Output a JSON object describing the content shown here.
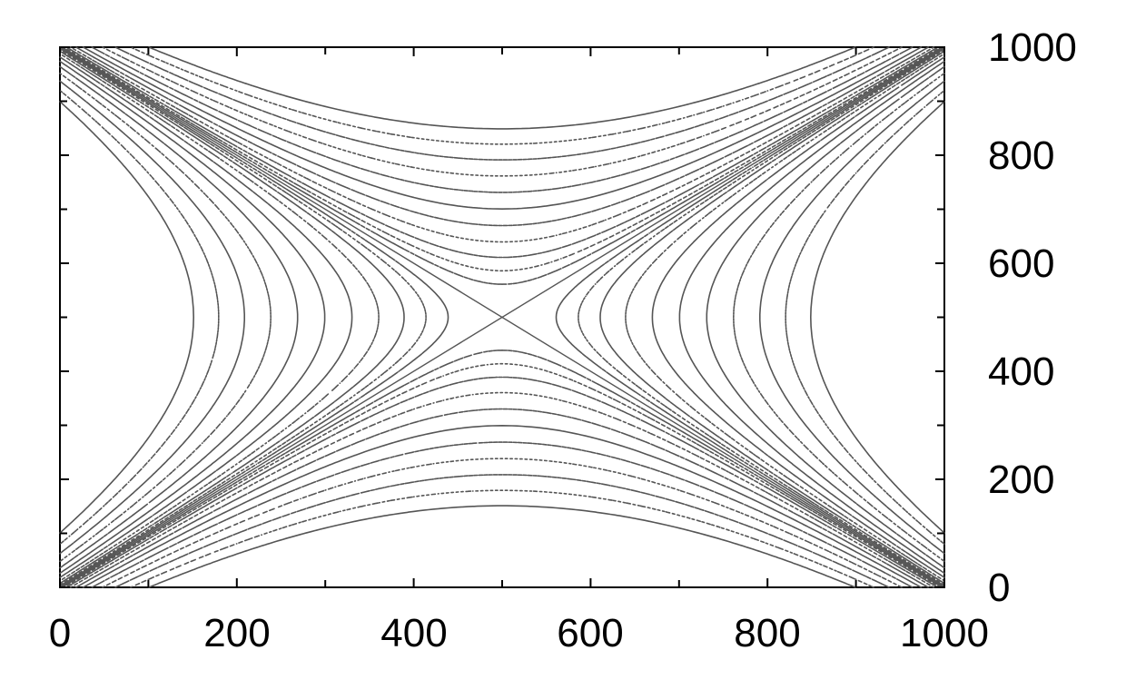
{
  "chart_data": {
    "type": "contour",
    "title": "",
    "xlabel": "",
    "ylabel": "",
    "xlim": [
      0,
      1000
    ],
    "ylim": [
      0,
      1000
    ],
    "x_ticks": [
      0,
      200,
      400,
      600,
      800,
      1000
    ],
    "y_ticks": [
      0,
      200,
      400,
      600,
      800,
      1000
    ],
    "x_tick_labels": [
      "0",
      "200",
      "400",
      "600",
      "800",
      "1000"
    ],
    "y_tick_labels": [
      "0",
      "200",
      "400",
      "600",
      "800",
      "1000"
    ],
    "y_axis_side": "right",
    "grid": false,
    "legend": "none",
    "line_color": "#555555",
    "saddle_point": [
      500,
      500
    ],
    "separatrices": [
      {
        "from": [
          0,
          0
        ],
        "to": [
          1000,
          1000
        ]
      },
      {
        "from": [
          0,
          1000
        ],
        "to": [
          1000,
          0
        ]
      }
    ],
    "contour_families": [
      {
        "region": "left",
        "apex_x": [
          340,
          240,
          170,
          130,
          100
        ],
        "solid_outer": true
      },
      {
        "region": "right",
        "apex_x": [
          660,
          760,
          830,
          870,
          900
        ],
        "solid_outer": true
      },
      {
        "region": "top",
        "apex_y": [
          690,
          760,
          830,
          880,
          930
        ],
        "solid_outer": true
      },
      {
        "region": "bottom",
        "apex_y": [
          310,
          240,
          170,
          120,
          70
        ],
        "solid_outer": true
      }
    ]
  }
}
